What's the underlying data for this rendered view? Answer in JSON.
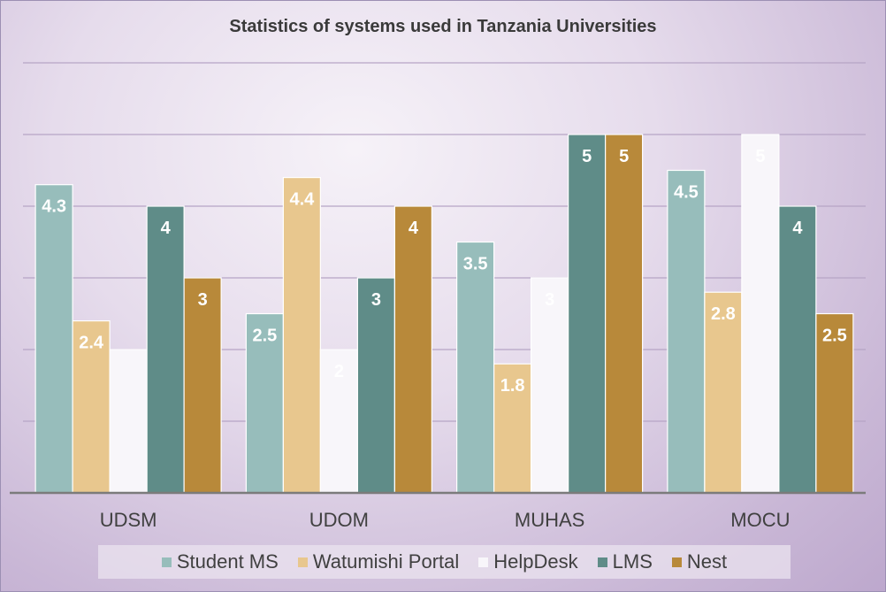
{
  "chart_data": {
    "type": "bar",
    "title": "Statistics of systems used in Tanzania Universities",
    "xlabel": "",
    "ylabel": "",
    "ylim": [
      0,
      6
    ],
    "grid": true,
    "legend_position": "bottom",
    "categories": [
      "UDSM",
      "UDOM",
      "MUHAS",
      "MOCU"
    ],
    "series": [
      {
        "name": "Student MS",
        "color": "#97bdbb",
        "values": [
          4.3,
          2.5,
          3.5,
          4.5
        ],
        "labels": [
          "4.3",
          "2.5",
          "3.5",
          "4.5"
        ]
      },
      {
        "name": "Watumishi Portal",
        "color": "#e8c78e",
        "values": [
          2.4,
          4.4,
          1.8,
          2.8
        ],
        "labels": [
          "2.4",
          "4.4",
          "1.8",
          "2.8"
        ]
      },
      {
        "name": "HelpDesk",
        "color": "#f8f6fa",
        "values": [
          2,
          2,
          3,
          5
        ],
        "labels": [
          "",
          "2",
          "3",
          "5"
        ]
      },
      {
        "name": "LMS",
        "color": "#5f8c88",
        "values": [
          4,
          3,
          5,
          4
        ],
        "labels": [
          "4",
          "3",
          "5",
          "4"
        ]
      },
      {
        "name": "Nest",
        "color": "#b8893a",
        "values": [
          3,
          4,
          5,
          2.5
        ],
        "labels": [
          "3",
          "4",
          "5",
          "2.5"
        ]
      }
    ]
  }
}
